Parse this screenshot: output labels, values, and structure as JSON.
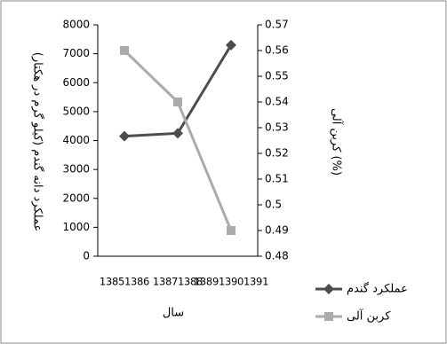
{
  "chart_data": {
    "type": "line",
    "categories": [
      "13851386",
      "13871388",
      "138913901391"
    ],
    "series": [
      {
        "name": "عملکرد گندم",
        "color": "#4d4d4d",
        "marker": "diamond",
        "values": [
          4150,
          4250,
          7300
        ]
      },
      {
        "name": "کربن آلی",
        "color": "#ababab",
        "marker": "square",
        "axis": "y2",
        "values": [
          0.56,
          0.54,
          0.49
        ]
      }
    ],
    "ylabel": "عملکرد دانه گندم (کیلو گرم در هکتار)",
    "y2label": "کربن آلی (%)",
    "xlabel": "سال",
    "ylim": [
      0,
      8000
    ],
    "yticks": [
      0,
      1000,
      2000,
      3000,
      4000,
      5000,
      6000,
      7000,
      8000
    ],
    "y2lim": [
      0.48,
      0.57
    ],
    "y2ticks": [
      0.48,
      0.49,
      0.5,
      0.51,
      0.52,
      0.53,
      0.54,
      0.55,
      0.56,
      0.57
    ],
    "legend": "bottom-right",
    "grid": false
  }
}
